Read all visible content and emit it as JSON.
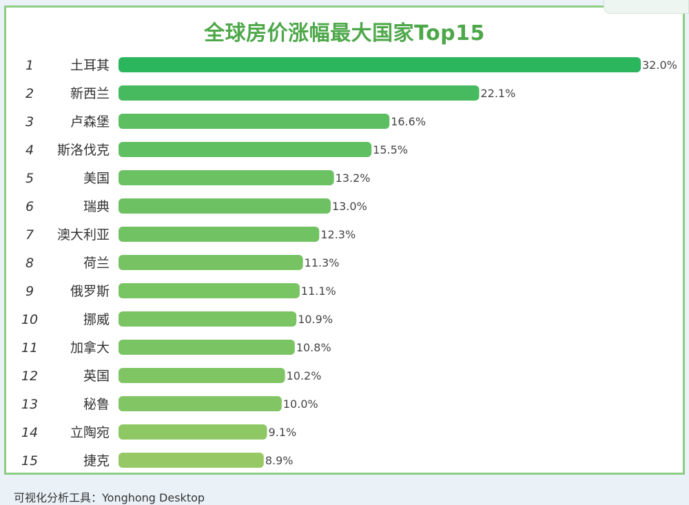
{
  "chart_data": {
    "type": "bar",
    "orientation": "horizontal",
    "title": "全球房价涨幅最大国家Top15",
    "ranks": [
      "1",
      "2",
      "3",
      "4",
      "5",
      "6",
      "7",
      "8",
      "9",
      "10",
      "11",
      "12",
      "13",
      "14",
      "15"
    ],
    "categories": [
      "土耳其",
      "新西兰",
      "卢森堡",
      "斯洛伐克",
      "美国",
      "瑞典",
      "澳大利亚",
      "荷兰",
      "俄罗斯",
      "挪威",
      "加拿大",
      "英国",
      "秘鲁",
      "立陶宛",
      "捷克"
    ],
    "values": [
      32.0,
      22.1,
      16.6,
      15.5,
      13.2,
      13.0,
      12.3,
      11.3,
      11.1,
      10.9,
      10.8,
      10.2,
      10.0,
      9.1,
      8.9
    ],
    "value_labels": [
      "32.0%",
      "22.1%",
      "16.6%",
      "15.5%",
      "13.2%",
      "13.0%",
      "12.3%",
      "11.3%",
      "11.1%",
      "10.9%",
      "10.8%",
      "10.2%",
      "10.0%",
      "9.1%",
      "8.9%"
    ],
    "xlim": [
      0,
      32.0
    ],
    "grid": false,
    "legend": "none",
    "colors": {
      "bar_high": "#2bb55c",
      "bar_low": "#96c966",
      "title": "#4ea84a",
      "frame": "#8dcc84"
    }
  },
  "footer": {
    "text": "可视化分析工具：Yonghong Desktop"
  }
}
